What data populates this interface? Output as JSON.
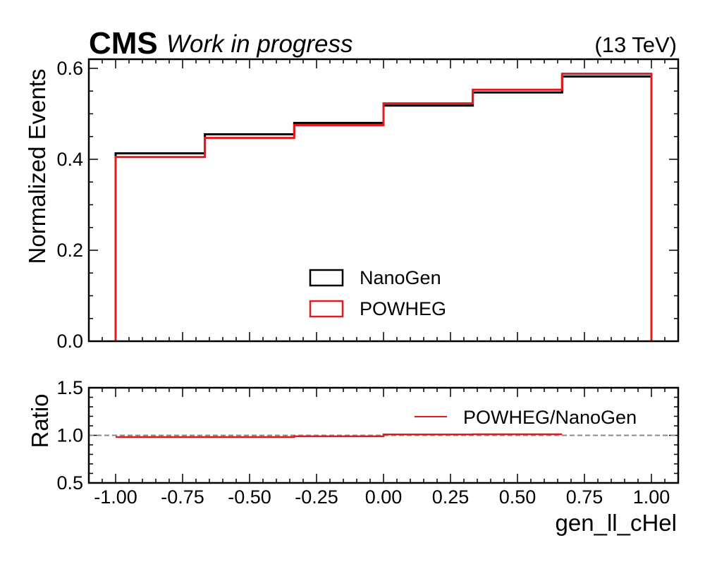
{
  "header": {
    "experiment": "CMS",
    "status": "Work in progress",
    "energy": "(13 TeV)"
  },
  "chart_data": [
    {
      "type": "line",
      "style": "step-histogram",
      "xlabel": "",
      "ylabel": "Normalized Events",
      "xlim": [
        -1.1,
        1.1
      ],
      "ylim": [
        0.0,
        0.62
      ],
      "bin_edges": [
        -1.0,
        -0.6667,
        -0.3333,
        0.0,
        0.3333,
        0.6667,
        1.0
      ],
      "series": [
        {
          "name": "NanoGen",
          "color": "#000000",
          "values": [
            0.413,
            0.455,
            0.48,
            0.518,
            0.547,
            0.582
          ]
        },
        {
          "name": "POWHEG",
          "color": "#e41a1c",
          "values": [
            0.405,
            0.447,
            0.475,
            0.523,
            0.553,
            0.588
          ]
        }
      ],
      "yticks": [
        "0.0",
        "0.2",
        "0.4",
        "0.6"
      ],
      "ytick_values": [
        0.0,
        0.2,
        0.4,
        0.6
      ],
      "legend_position": "lower-center",
      "grid": false
    },
    {
      "type": "line",
      "style": "step",
      "xlabel": "gen_ll_cHel",
      "ylabel": "Ratio",
      "xlim": [
        -1.1,
        1.1
      ],
      "ylim": [
        0.5,
        1.5
      ],
      "bin_edges": [
        -1.0,
        -0.6667,
        -0.3333,
        0.0,
        0.3333,
        0.6667
      ],
      "series": [
        {
          "name": "POWHEG/NanoGen",
          "color": "#e41a1c",
          "values": [
            0.982,
            0.982,
            0.99,
            1.009,
            1.011
          ]
        }
      ],
      "reference_line": 1.0,
      "xticks": [
        "-1.00",
        "-0.75",
        "-0.50",
        "-0.25",
        "0.00",
        "0.25",
        "0.50",
        "0.75",
        "1.00"
      ],
      "xtick_values": [
        -1.0,
        -0.75,
        -0.5,
        -0.25,
        0.0,
        0.25,
        0.5,
        0.75,
        1.0
      ],
      "yticks": [
        "0.5",
        "1.0",
        "1.5"
      ],
      "ytick_values": [
        0.5,
        1.0,
        1.5
      ],
      "legend_position": "upper-right",
      "grid": false
    }
  ]
}
